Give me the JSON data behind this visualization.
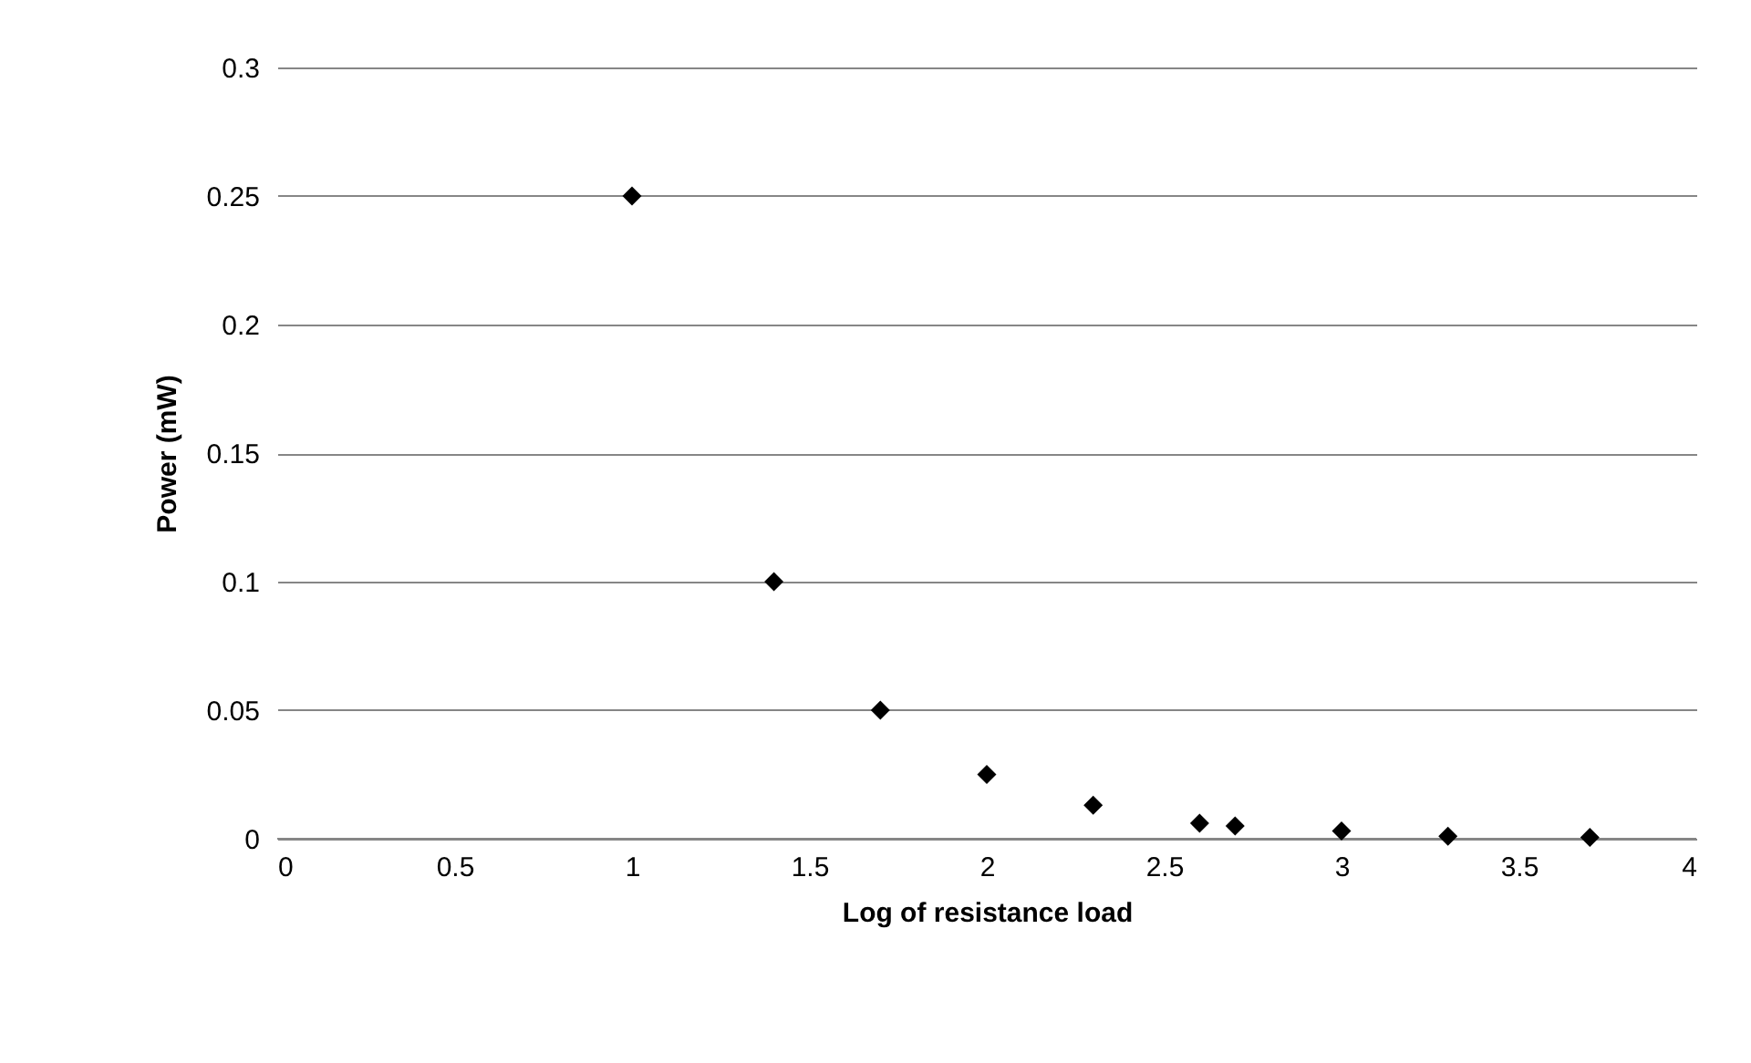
{
  "chart_data": {
    "type": "scatter",
    "xlabel": "Log of resistance load",
    "ylabel": "Power (mW)",
    "x": [
      1,
      1.4,
      1.7,
      2,
      2.3,
      2.6,
      2.7,
      3,
      3.3,
      3.7
    ],
    "series": [
      {
        "color": "#000000",
        "values": [
          0.25,
          0.1,
          0.05,
          0.025,
          0.013,
          0.006,
          0.005,
          0.003,
          0.001,
          0.0005
        ]
      }
    ],
    "xlim": [
      0,
      4
    ],
    "xticks": [
      0,
      0.5,
      1,
      1.5,
      2,
      2.5,
      3,
      3.5,
      4
    ],
    "ylim": [
      0,
      0.3
    ],
    "yticks": [
      0,
      0.05,
      0.1,
      0.15,
      0.2,
      0.25,
      0.3
    ],
    "grid": "y",
    "marker": "diamond"
  }
}
